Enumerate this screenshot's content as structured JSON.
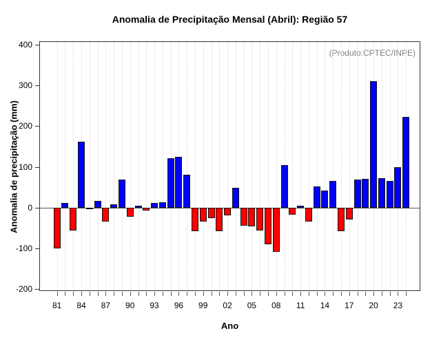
{
  "title": "Anomalia de Precipitação Mensal (Abril): Região 57",
  "annotation": "(Produto:CPTEC/INPE)",
  "chart_data": {
    "type": "bar",
    "title": "Anomalia de Precipitação Mensal (Abril): Região 57",
    "xlabel": "Ano",
    "ylabel": "Anomalia de precipitação (mm)",
    "annotation": "(Produto:CPTEC/INPE)",
    "ylim": [
      -200,
      400
    ],
    "y_ticks": [
      400,
      300,
      200,
      100,
      0,
      -100,
      -200
    ],
    "grid": "vertical-dotted",
    "legend": null,
    "positive_color": "#0000ff",
    "negative_color": "#ff0000",
    "bar_border_color": "#111111",
    "annotation_color": "#808080",
    "label_every": 3,
    "x_tick_labels": [
      "81",
      "84",
      "87",
      "90",
      "93",
      "96",
      "99",
      "02",
      "05",
      "08",
      "11",
      "14",
      "17",
      "20",
      "23"
    ],
    "years": [
      1981,
      1982,
      1983,
      1984,
      1985,
      1986,
      1987,
      1988,
      1989,
      1990,
      1991,
      1992,
      1993,
      1994,
      1995,
      1996,
      1997,
      1998,
      1999,
      2000,
      2001,
      2002,
      2003,
      2004,
      2005,
      2006,
      2007,
      2008,
      2009,
      2010,
      2011,
      2012,
      2013,
      2014,
      2015,
      2016,
      2017,
      2018,
      2019,
      2020,
      2021,
      2022,
      2023,
      2024
    ],
    "values": [
      -100,
      12,
      -56,
      162,
      -2,
      16,
      -34,
      8,
      68,
      -23,
      4,
      -7,
      12,
      13,
      121,
      124,
      80,
      -58,
      -34,
      -26,
      -58,
      -20,
      48,
      -44,
      -47,
      -56,
      -90,
      -108,
      105,
      -18,
      5,
      -35,
      52,
      41,
      66,
      -58,
      -30,
      68,
      71,
      310,
      72,
      66,
      100,
      223
    ]
  }
}
